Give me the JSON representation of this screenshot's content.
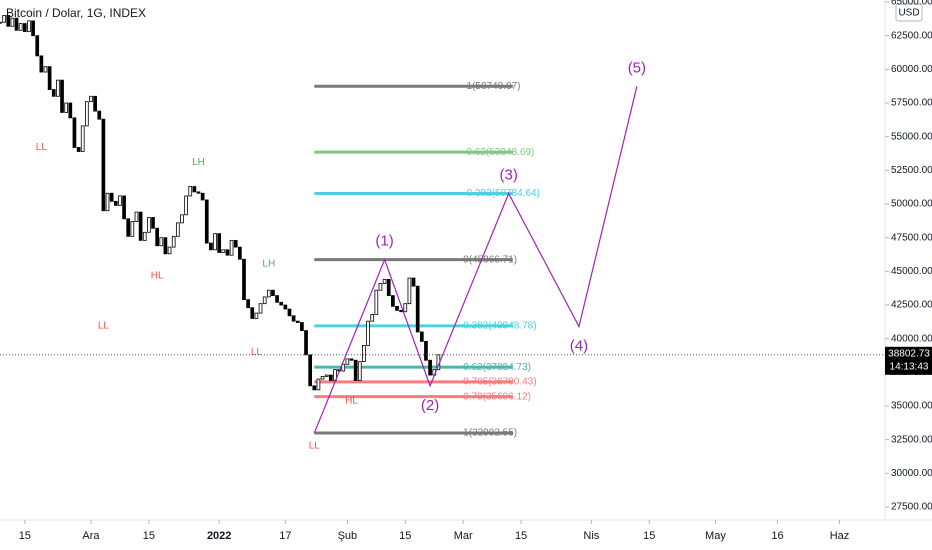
{
  "chart_data": {
    "type": "candlestick",
    "title": "Bitcoin / Dolar, 1G, INDEX",
    "currency": "USD",
    "x": [
      -6,
      -5,
      -4,
      -3,
      -2,
      -1,
      0,
      1,
      2,
      3,
      4,
      5,
      6,
      7,
      8,
      9,
      10,
      11,
      12,
      13,
      14,
      15,
      16,
      17,
      18,
      19,
      20,
      21,
      22,
      23,
      24,
      25,
      26,
      27,
      28,
      29,
      30,
      31,
      32,
      33,
      34,
      35,
      36,
      37,
      38,
      39,
      40,
      41,
      42,
      43,
      44,
      45,
      46,
      47,
      48,
      49,
      50,
      51,
      52,
      53,
      54,
      55,
      56,
      57,
      58,
      59,
      60,
      61,
      62,
      63,
      64,
      65,
      66,
      67,
      68,
      69,
      70,
      71,
      72,
      73,
      74,
      75,
      76,
      77,
      78,
      79,
      80,
      81,
      82,
      83,
      84,
      85,
      86,
      87,
      88,
      89,
      90,
      91,
      92,
      93,
      94,
      95,
      96,
      97,
      98,
      99,
      100
    ],
    "values": [
      63500,
      64000,
      63200,
      63800,
      62900,
      63400,
      62800,
      63600,
      62500,
      61000,
      59800,
      60200,
      58500,
      58000,
      59200,
      56800,
      57500,
      56400,
      54200,
      53900,
      55800,
      57600,
      58000,
      56900,
      56300,
      49500,
      50800,
      50200,
      49900,
      50600,
      48900,
      47600,
      48700,
      49400,
      47300,
      47900,
      49000,
      48200,
      46900,
      47500,
      46300,
      46800,
      47600,
      48600,
      49200,
      50600,
      51300,
      50900,
      50800,
      50300,
      47100,
      46600,
      47800,
      46400,
      46600,
      46200,
      47300,
      46800,
      45900,
      42900,
      42300,
      41500,
      41900,
      42600,
      43100,
      43600,
      43200,
      42700,
      42500,
      42200,
      41700,
      41300,
      41200,
      40600,
      38800,
      36500,
      36200,
      37000,
      37200,
      37300,
      36900,
      37700,
      37600,
      38100,
      38500,
      38400,
      36900,
      38300,
      39500,
      41300,
      41800,
      43600,
      44100,
      44400,
      43200,
      42400,
      42100,
      42000,
      42600,
      44500,
      43900,
      40500,
      39800,
      38400,
      37300,
      37700,
      38802.73
    ],
    "up_color": "#ffffff",
    "down_color": "#000000",
    "xlim": [
      -6,
      208
    ],
    "ylim": [
      26535,
      65150
    ],
    "xticks": [
      {
        "value": 0,
        "label": "15"
      },
      {
        "value": 16,
        "label": "Ara"
      },
      {
        "value": 30,
        "label": "15"
      },
      {
        "value": 47,
        "label": "2022"
      },
      {
        "value": 63,
        "label": "17"
      },
      {
        "value": 78,
        "label": "Şub"
      },
      {
        "value": 92,
        "label": "15"
      },
      {
        "value": 106,
        "label": "Mar"
      },
      {
        "value": 120,
        "label": "15"
      },
      {
        "value": 137,
        "label": "Nis"
      },
      {
        "value": 151,
        "label": "15"
      },
      {
        "value": 167,
        "label": "May"
      },
      {
        "value": 182,
        "label": "16"
      },
      {
        "value": 197,
        "label": "Haz"
      }
    ],
    "yticks": [
      {
        "value": 27500,
        "label": "27500.00"
      },
      {
        "value": 30000,
        "label": "30000.00"
      },
      {
        "value": 32500,
        "label": "32500.00"
      },
      {
        "value": 35000,
        "label": "35000.00"
      },
      {
        "value": 37500,
        "label": "37500.00"
      },
      {
        "value": 40000,
        "label": "40000.00"
      },
      {
        "value": 42500,
        "label": "42500.00"
      },
      {
        "value": 45000,
        "label": "45000.00"
      },
      {
        "value": 47500,
        "label": "47500.00"
      },
      {
        "value": 50000,
        "label": "50000.00"
      },
      {
        "value": 52500,
        "label": "52500.00"
      },
      {
        "value": 55000,
        "label": "55000.00"
      },
      {
        "value": 57500,
        "label": "57500.00"
      },
      {
        "value": 60000,
        "label": "60000.00"
      },
      {
        "value": 62500,
        "label": "62500.00"
      },
      {
        "value": 65000,
        "label": "65000.00"
      }
    ],
    "last_price": 38802.73,
    "countdown": "14:13:43",
    "fib_levels": [
      {
        "value": 58740.87,
        "label": "-1(58740.87)",
        "color": "#787878"
      },
      {
        "value": 53848.69,
        "label": "-0.62(53848.69)",
        "color": "#81c784"
      },
      {
        "value": 50784.64,
        "label": "-0.382(50784.64)",
        "color": "#4dd0e1"
      },
      {
        "value": 45866.71,
        "label": "0(45866.71)",
        "color": "#787878"
      },
      {
        "value": 40948.78,
        "label": "0.382(40948.78)",
        "color": "#4dd0e1"
      },
      {
        "value": 37884.73,
        "label": "0.62(37884.73)",
        "color": "#4db6ac"
      },
      {
        "value": 36790.43,
        "label": "0.705(36790.43)",
        "color": "#f77c80"
      },
      {
        "value": 35696.12,
        "label": "0.79(35696.12)",
        "color": "#f77c80"
      },
      {
        "value": 32992.55,
        "label": "1(32992.55)",
        "color": "#787878"
      }
    ],
    "fib_x": [
      70,
      118,
      106
    ],
    "waves": {
      "color": "#9c27b0",
      "x": [
        70,
        87,
        98,
        117,
        134,
        148
      ],
      "values": [
        32992.55,
        45866.71,
        36500,
        50784.64,
        40900,
        58740.87
      ],
      "labels": [
        null,
        "(1)",
        "(2)",
        "(3)",
        "(4)",
        "(5)"
      ]
    },
    "annotations": [
      {
        "x": 4,
        "value": 54200,
        "label": "LL",
        "color": "#ef5350"
      },
      {
        "x": 19,
        "value": 40940,
        "label": "LL",
        "color": "#ef5350"
      },
      {
        "x": 32,
        "value": 44650,
        "label": "HL",
        "color": "#ef5350"
      },
      {
        "x": 42,
        "value": 53100,
        "label": "LH",
        "color": "#4caf50"
      },
      {
        "x": 56,
        "value": 39000,
        "label": "LL",
        "color": "#ef5350"
      },
      {
        "x": 59,
        "value": 45540,
        "label": "LH",
        "color": "#4caf50"
      },
      {
        "x": 70,
        "value": 32030,
        "label": "LL",
        "color": "#ef5350"
      },
      {
        "x": 79,
        "value": 35370,
        "label": "HL",
        "color": "#ef5350"
      }
    ]
  }
}
